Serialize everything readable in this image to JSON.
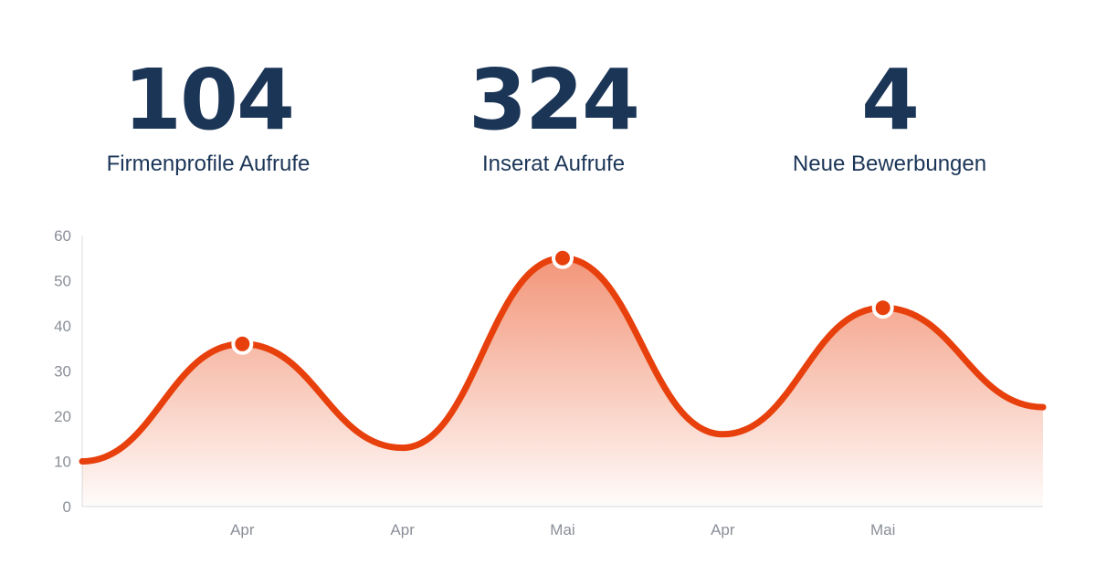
{
  "stats": [
    {
      "value": "104",
      "label": "Firmenprofile Aufrufe"
    },
    {
      "value": "324",
      "label": "Inserat Aufrufe"
    },
    {
      "value": "4",
      "label": "Neue Bewerbungen"
    }
  ],
  "colors": {
    "accent": "#e8400c",
    "text": "#1b3557",
    "axis": "#8a8f98"
  },
  "chart_data": {
    "type": "area",
    "curve": "smooth",
    "grid": false,
    "ylim": [
      0,
      60
    ],
    "y_ticks": [
      "0",
      "10",
      "20",
      "30",
      "40",
      "50",
      "60"
    ],
    "x_ticks": [
      "Apr",
      "Apr",
      "Mai",
      "Apr",
      "Mai"
    ],
    "series": [
      {
        "x": [
          0,
          1,
          2,
          3,
          4,
          5,
          6
        ],
        "values": [
          10,
          36,
          13,
          55,
          16,
          44,
          22
        ],
        "highlighted_points": [
          1,
          3,
          5
        ]
      }
    ]
  }
}
